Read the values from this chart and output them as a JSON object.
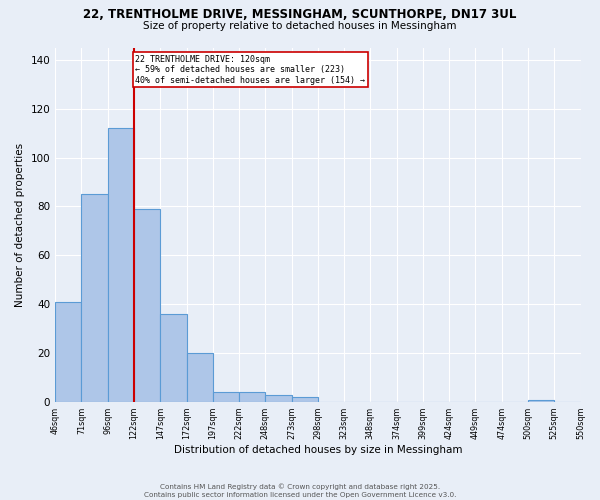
{
  "title": "22, TRENTHOLME DRIVE, MESSINGHAM, SCUNTHORPE, DN17 3UL",
  "subtitle": "Size of property relative to detached houses in Messingham",
  "xlabel": "Distribution of detached houses by size in Messingham",
  "ylabel": "Number of detached properties",
  "bar_values": [
    41,
    85,
    112,
    79,
    36,
    20,
    4,
    4,
    3,
    2,
    0,
    0,
    0,
    0,
    0,
    0,
    0,
    0,
    1,
    0
  ],
  "categories": [
    "46sqm",
    "71sqm",
    "96sqm",
    "122sqm",
    "147sqm",
    "172sqm",
    "197sqm",
    "222sqm",
    "248sqm",
    "273sqm",
    "298sqm",
    "323sqm",
    "348sqm",
    "374sqm",
    "399sqm",
    "424sqm",
    "449sqm",
    "474sqm",
    "500sqm",
    "525sqm",
    "550sqm"
  ],
  "bar_color": "#aec6e8",
  "bar_edge_color": "#5b9bd5",
  "bg_color": "#e8eef7",
  "grid_color": "#ffffff",
  "red_line_x": 3,
  "annotation_text": "22 TRENTHOLME DRIVE: 120sqm\n← 59% of detached houses are smaller (223)\n40% of semi-detached houses are larger (154) →",
  "annotation_box_color": "#ffffff",
  "annotation_box_edge": "#cc0000",
  "red_line_color": "#cc0000",
  "ylim": [
    0,
    145
  ],
  "yticks": [
    0,
    20,
    40,
    60,
    80,
    100,
    120,
    140
  ],
  "footer1": "Contains HM Land Registry data © Crown copyright and database right 2025.",
  "footer2": "Contains public sector information licensed under the Open Government Licence v3.0."
}
